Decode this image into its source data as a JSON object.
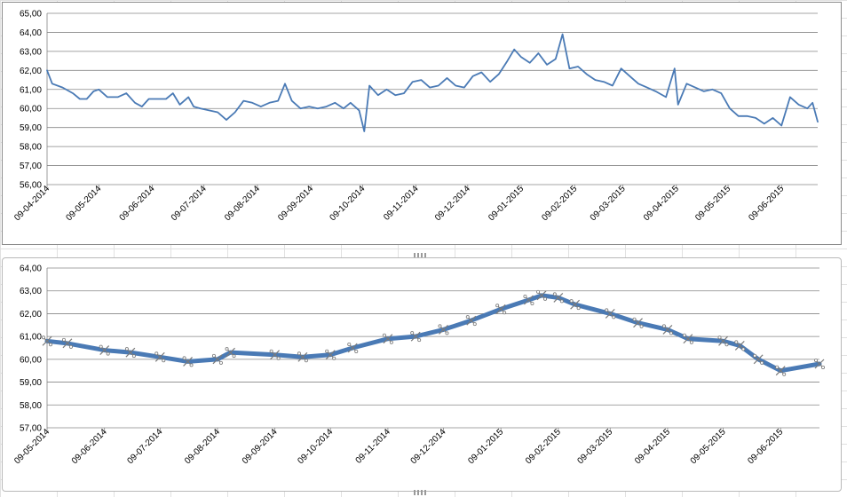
{
  "chart_data": [
    {
      "type": "line",
      "ylim": [
        56,
        65
      ],
      "ytick_step": 1,
      "y_tick_labels": [
        "65,00",
        "64,00",
        "63,00",
        "62,00",
        "61,00",
        "60,00",
        "59,00",
        "58,00",
        "57,00",
        "56,00"
      ],
      "x_tick_labels": [
        "09-04-2014",
        "09-05-2014",
        "09-06-2014",
        "09-07-2014",
        "09-08-2014",
        "09-09-2014",
        "09-10-2014",
        "09-11-2014",
        "09-12-2014",
        "09-01-2015",
        "09-02-2015",
        "09-03-2015",
        "09-04-2015",
        "09-05-2015",
        "09-06-2015"
      ],
      "series": [
        {
          "color": "#4a7ab5",
          "marker": "none",
          "points": [
            [
              "09-04-2014",
              62.0
            ],
            [
              "12-04-2014",
              61.3
            ],
            [
              "18-04-2014",
              61.1
            ],
            [
              "24-04-2014",
              60.8
            ],
            [
              "28-04-2014",
              60.5
            ],
            [
              "02-05-2014",
              60.5
            ],
            [
              "06-05-2014",
              60.9
            ],
            [
              "09-05-2014",
              61.0
            ],
            [
              "14-05-2014",
              60.6
            ],
            [
              "20-05-2014",
              60.6
            ],
            [
              "25-05-2014",
              60.8
            ],
            [
              "30-05-2014",
              60.3
            ],
            [
              "03-06-2014",
              60.1
            ],
            [
              "07-06-2014",
              60.5
            ],
            [
              "12-06-2014",
              60.5
            ],
            [
              "17-06-2014",
              60.5
            ],
            [
              "21-06-2014",
              60.8
            ],
            [
              "25-06-2014",
              60.2
            ],
            [
              "30-06-2014",
              60.6
            ],
            [
              "03-07-2014",
              60.1
            ],
            [
              "07-07-2014",
              60.0
            ],
            [
              "12-07-2014",
              59.9
            ],
            [
              "17-07-2014",
              59.8
            ],
            [
              "22-07-2014",
              59.4
            ],
            [
              "27-07-2014",
              59.8
            ],
            [
              "01-08-2014",
              60.4
            ],
            [
              "06-08-2014",
              60.3
            ],
            [
              "11-08-2014",
              60.1
            ],
            [
              "16-08-2014",
              60.3
            ],
            [
              "21-08-2014",
              60.4
            ],
            [
              "25-08-2014",
              61.3
            ],
            [
              "29-08-2014",
              60.4
            ],
            [
              "03-09-2014",
              60.0
            ],
            [
              "08-09-2014",
              60.1
            ],
            [
              "13-09-2014",
              60.0
            ],
            [
              "18-09-2014",
              60.1
            ],
            [
              "23-09-2014",
              60.3
            ],
            [
              "28-09-2014",
              60.0
            ],
            [
              "02-10-2014",
              60.3
            ],
            [
              "07-10-2014",
              59.9
            ],
            [
              "10-10-2014",
              58.8
            ],
            [
              "13-10-2014",
              61.2
            ],
            [
              "18-10-2014",
              60.7
            ],
            [
              "23-10-2014",
              61.0
            ],
            [
              "28-10-2014",
              60.7
            ],
            [
              "02-11-2014",
              60.8
            ],
            [
              "07-11-2014",
              61.4
            ],
            [
              "12-11-2014",
              61.5
            ],
            [
              "17-11-2014",
              61.1
            ],
            [
              "22-11-2014",
              61.2
            ],
            [
              "27-11-2014",
              61.6
            ],
            [
              "02-12-2014",
              61.2
            ],
            [
              "07-12-2014",
              61.1
            ],
            [
              "12-12-2014",
              61.7
            ],
            [
              "17-12-2014",
              61.9
            ],
            [
              "22-12-2014",
              61.4
            ],
            [
              "27-12-2014",
              61.8
            ],
            [
              "01-01-2015",
              62.5
            ],
            [
              "05-01-2015",
              63.1
            ],
            [
              "09-01-2015",
              62.7
            ],
            [
              "14-01-2015",
              62.4
            ],
            [
              "19-01-2015",
              62.9
            ],
            [
              "24-01-2015",
              62.3
            ],
            [
              "29-01-2015",
              62.6
            ],
            [
              "02-02-2015",
              63.9
            ],
            [
              "06-02-2015",
              62.1
            ],
            [
              "11-02-2015",
              62.2
            ],
            [
              "16-02-2015",
              61.8
            ],
            [
              "21-02-2015",
              61.5
            ],
            [
              "26-02-2015",
              61.4
            ],
            [
              "03-03-2015",
              61.2
            ],
            [
              "08-03-2015",
              62.1
            ],
            [
              "13-03-2015",
              61.7
            ],
            [
              "18-03-2015",
              61.3
            ],
            [
              "23-03-2015",
              61.1
            ],
            [
              "28-03-2015",
              60.9
            ],
            [
              "03-04-2015",
              60.6
            ],
            [
              "08-04-2015",
              62.1
            ],
            [
              "10-04-2015",
              60.2
            ],
            [
              "15-04-2015",
              61.3
            ],
            [
              "20-04-2015",
              61.1
            ],
            [
              "25-04-2015",
              60.9
            ],
            [
              "30-04-2015",
              61.0
            ],
            [
              "05-05-2015",
              60.8
            ],
            [
              "10-05-2015",
              60.0
            ],
            [
              "15-05-2015",
              59.6
            ],
            [
              "20-05-2015",
              59.6
            ],
            [
              "25-05-2015",
              59.5
            ],
            [
              "30-05-2015",
              59.2
            ],
            [
              "04-06-2015",
              59.5
            ],
            [
              "09-06-2015",
              59.1
            ],
            [
              "14-06-2015",
              60.6
            ],
            [
              "19-06-2015",
              60.2
            ],
            [
              "24-06-2015",
              60.0
            ],
            [
              "27-06-2015",
              60.3
            ],
            [
              "30-06-2015",
              59.3
            ]
          ]
        }
      ]
    },
    {
      "type": "line",
      "ylim": [
        57,
        64
      ],
      "ytick_step": 1,
      "y_tick_labels": [
        "64,00",
        "63,00",
        "62,00",
        "61,00",
        "60,00",
        "59,00",
        "58,00",
        "57,00"
      ],
      "x_tick_labels": [
        "09-05-2014",
        "09-06-2014",
        "09-07-2014",
        "09-08-2014",
        "09-09-2014",
        "09-10-2014",
        "09-11-2014",
        "09-12-2014",
        "09-01-2015",
        "09-02-2015",
        "09-03-2015",
        "09-04-2015",
        "09-05-2015",
        "09-06-2015"
      ],
      "series": [
        {
          "color": "#4a7ab5",
          "marker": "x",
          "points": [
            [
              "09-05-2014",
              60.8
            ],
            [
              "20-05-2014",
              60.7
            ],
            [
              "09-06-2014",
              60.4
            ],
            [
              "23-06-2014",
              60.3
            ],
            [
              "09-07-2014",
              60.1
            ],
            [
              "24-07-2014",
              59.9
            ],
            [
              "09-08-2014",
              60.0
            ],
            [
              "16-08-2014",
              60.3
            ],
            [
              "09-09-2014",
              60.2
            ],
            [
              "24-09-2014",
              60.1
            ],
            [
              "09-10-2014",
              60.2
            ],
            [
              "21-10-2014",
              60.5
            ],
            [
              "09-11-2014",
              60.9
            ],
            [
              "24-11-2014",
              61.0
            ],
            [
              "09-12-2014",
              61.3
            ],
            [
              "24-12-2014",
              61.7
            ],
            [
              "09-01-2015",
              62.2
            ],
            [
              "24-01-2015",
              62.6
            ],
            [
              "31-01-2015",
              62.8
            ],
            [
              "09-02-2015",
              62.7
            ],
            [
              "18-02-2015",
              62.4
            ],
            [
              "09-03-2015",
              62.0
            ],
            [
              "24-03-2015",
              61.6
            ],
            [
              "09-04-2015",
              61.3
            ],
            [
              "20-04-2015",
              60.9
            ],
            [
              "09-05-2015",
              60.8
            ],
            [
              "18-05-2015",
              60.6
            ],
            [
              "28-05-2015",
              60.0
            ],
            [
              "09-06-2015",
              59.5
            ],
            [
              "30-06-2015",
              59.8
            ]
          ]
        }
      ]
    }
  ]
}
